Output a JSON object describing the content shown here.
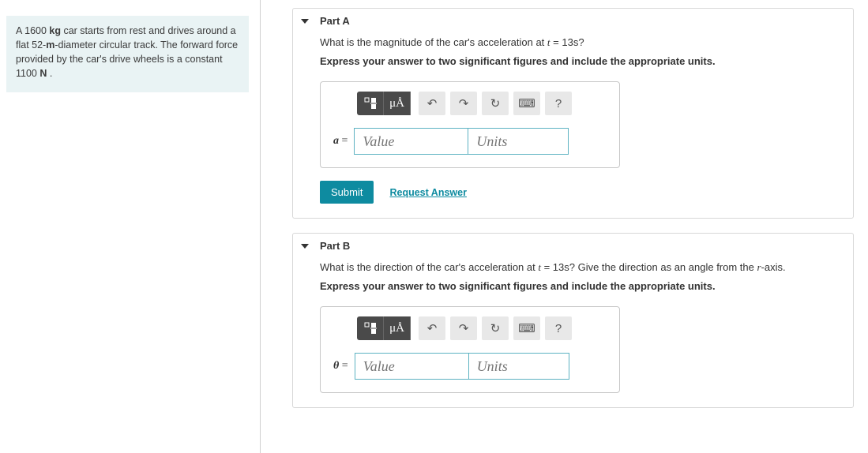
{
  "problem": {
    "mass": "1600",
    "mass_unit": "kg",
    "diameter": "52",
    "diameter_unit": "m",
    "force": "1100",
    "force_unit": "N",
    "full_html": "A 1600 <b>kg</b> car starts from rest and drives around a flat 52-<b>m</b>-diameter circular track. The forward force provided by the car's drive wheels is a constant 1100 <b>N</b> ."
  },
  "colors": {
    "problem_bg": "#e9f3f4",
    "border": "#d8d8d8",
    "accent": "#0e8ba0",
    "input_border": "#5db2c2",
    "toolbar_dark": "#4a4a4a"
  },
  "toolbar": {
    "mu_label": "μÅ",
    "undo_glyph": "↶",
    "redo_glyph": "↷",
    "reset_glyph": "↻",
    "keyboard_glyph": "⌨",
    "help_glyph": "?"
  },
  "parts": [
    {
      "id": "A",
      "title": "Part A",
      "question_html": "What is the magnitude of the car's acceleration at <span class=\"it\">t</span> = 13s?",
      "instruction": "Express your answer to two significant figures and include the appropriate units.",
      "var_symbol": "a",
      "value_placeholder": "Value",
      "units_placeholder": "Units",
      "submit_label": "Submit",
      "request_label": "Request Answer",
      "show_submit": true
    },
    {
      "id": "B",
      "title": "Part B",
      "question_html": "What is the direction of the car's acceleration at <span class=\"it\">t</span> = 13s? Give the direction as an angle from the <span class=\"it\">r</span>-axis.",
      "instruction": "Express your answer to two significant figures and include the appropriate units.",
      "var_symbol": "θ",
      "value_placeholder": "Value",
      "units_placeholder": "Units",
      "submit_label": "Submit",
      "request_label": "Request Answer",
      "show_submit": false
    }
  ]
}
